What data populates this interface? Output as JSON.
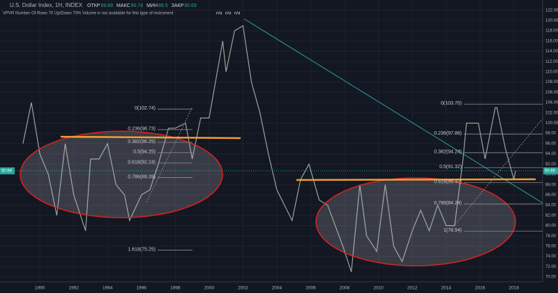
{
  "chart_data": {
    "type": "line",
    "title": "U.S. Dollar Index, 1H, INDEX",
    "ohlc": [
      {
        "name": "ОТКР",
        "value": 89.89
      },
      {
        "name": "МАКС",
        "value": 90.74
      },
      {
        "name": "МИН",
        "value": 89.5
      },
      {
        "name": "ЗАКР",
        "value": 90.69
      }
    ],
    "indicator": "VPVR Number Of Rows 70 Up/Down 70% Volume is not available for this type of instrument",
    "volume_labels": [
      "n/a",
      "n/a",
      "n/a"
    ],
    "last_price": 90.69,
    "xlim": [
      1988.8,
      2019.7
    ],
    "xticks": [
      1990,
      1992,
      1994,
      1996,
      1998,
      2000,
      2002,
      2004,
      2006,
      2008,
      2010,
      2012,
      2014,
      2016,
      2018
    ],
    "ylim": [
      69.05,
      124.0
    ],
    "yticks": [
      {
        "value": 70,
        "label": "70.00"
      },
      {
        "value": 72,
        "label": "72.00"
      },
      {
        "value": 74,
        "label": "74.00"
      },
      {
        "value": 76,
        "label": "76.00"
      },
      {
        "value": 78,
        "label": "78.00"
      },
      {
        "value": 80,
        "label": "80.00"
      },
      {
        "value": 82,
        "label": "82.00"
      },
      {
        "value": 84,
        "label": "84.00"
      },
      {
        "value": 86,
        "label": "86.00"
      },
      {
        "value": 88,
        "label": "88.00"
      },
      {
        "value": 90,
        "label": "90.00"
      },
      {
        "value": 92,
        "label": "92.00"
      },
      {
        "value": 94,
        "label": "94.00"
      },
      {
        "value": 96,
        "label": "96.00"
      },
      {
        "value": 98,
        "label": "98.00"
      },
      {
        "value": 100,
        "label": "100.00"
      },
      {
        "value": 102,
        "label": "102.00"
      },
      {
        "value": 104,
        "label": "104.00"
      },
      {
        "value": 106,
        "label": "106.00"
      },
      {
        "value": 108,
        "label": "108.00"
      },
      {
        "value": 110,
        "label": "110.00"
      },
      {
        "value": 112,
        "label": "112.00"
      },
      {
        "value": 114,
        "label": "114.00"
      },
      {
        "value": 116,
        "label": "116.00"
      },
      {
        "value": 118,
        "label": "118.00"
      },
      {
        "value": 120,
        "label": "120.00"
      },
      {
        "value": 122,
        "label": "122.00"
      }
    ],
    "grid": true,
    "color": "#9aa59a",
    "x": [
      1989.0,
      1989.5,
      1990.0,
      1990.5,
      1991.0,
      1991.5,
      1992.0,
      1992.7,
      1993.0,
      1993.5,
      1994.0,
      1994.5,
      1995.0,
      1995.3,
      1996.0,
      1996.5,
      1997.0,
      1997.6,
      1998.0,
      1998.6,
      1999.0,
      1999.5,
      2000.0,
      2000.8,
      2001.0,
      2001.5,
      2002.0,
      2002.5,
      2003.0,
      2003.5,
      2004.0,
      2004.9,
      2005.4,
      2005.9,
      2006.5,
      2007.0,
      2007.9,
      2008.4,
      2008.9,
      2009.3,
      2009.9,
      2010.4,
      2010.9,
      2011.4,
      2012.0,
      2012.5,
      2013.0,
      2013.5,
      2014.0,
      2014.5,
      2015.0,
      2015.2,
      2015.9,
      2016.3,
      2016.9,
      2017.0,
      2017.5,
      2018.0,
      2018.1
    ],
    "values": [
      96,
      104,
      94,
      90,
      82,
      96,
      86,
      79,
      93,
      93,
      96,
      88,
      86,
      81,
      86,
      87,
      92,
      99,
      99,
      100,
      93,
      101,
      101,
      116,
      110,
      118,
      119,
      108,
      102,
      94,
      87,
      81,
      89,
      92,
      85,
      84,
      76,
      71,
      88,
      78,
      75,
      88,
      76,
      73,
      79,
      83,
      79,
      84,
      80,
      80,
      93,
      100,
      100,
      93,
      103,
      103,
      95,
      89,
      90.69
    ],
    "fib_left": [
      {
        "value": 102.74,
        "label": "0(102.74)"
      },
      {
        "value": 98.73,
        "label": "0.236(98.73)"
      },
      {
        "value": 96.25,
        "label": "0.382(96.25)"
      },
      {
        "value": 94.25,
        "label": "0.5(94.25)"
      },
      {
        "value": 92.24,
        "label": "0.618(92.24)"
      },
      {
        "value": 89.39,
        "label": "0.786(89.39)"
      },
      {
        "value": 75.25,
        "label": "1.618(75.25)"
      }
    ],
    "fib_right": [
      {
        "value": 103.7,
        "label": "0(103.70)"
      },
      {
        "value": 97.86,
        "label": "0.236(97.86)"
      },
      {
        "value": 94.24,
        "label": "0.382(94.24)"
      },
      {
        "value": 91.32,
        "label": "0.5(91.32)"
      },
      {
        "value": 88.4,
        "label": "0.618(88.40)"
      },
      {
        "value": 84.24,
        "label": "0.786(84.24)"
      },
      {
        "value": 78.94,
        "label": "1(78.94)"
      }
    ]
  }
}
